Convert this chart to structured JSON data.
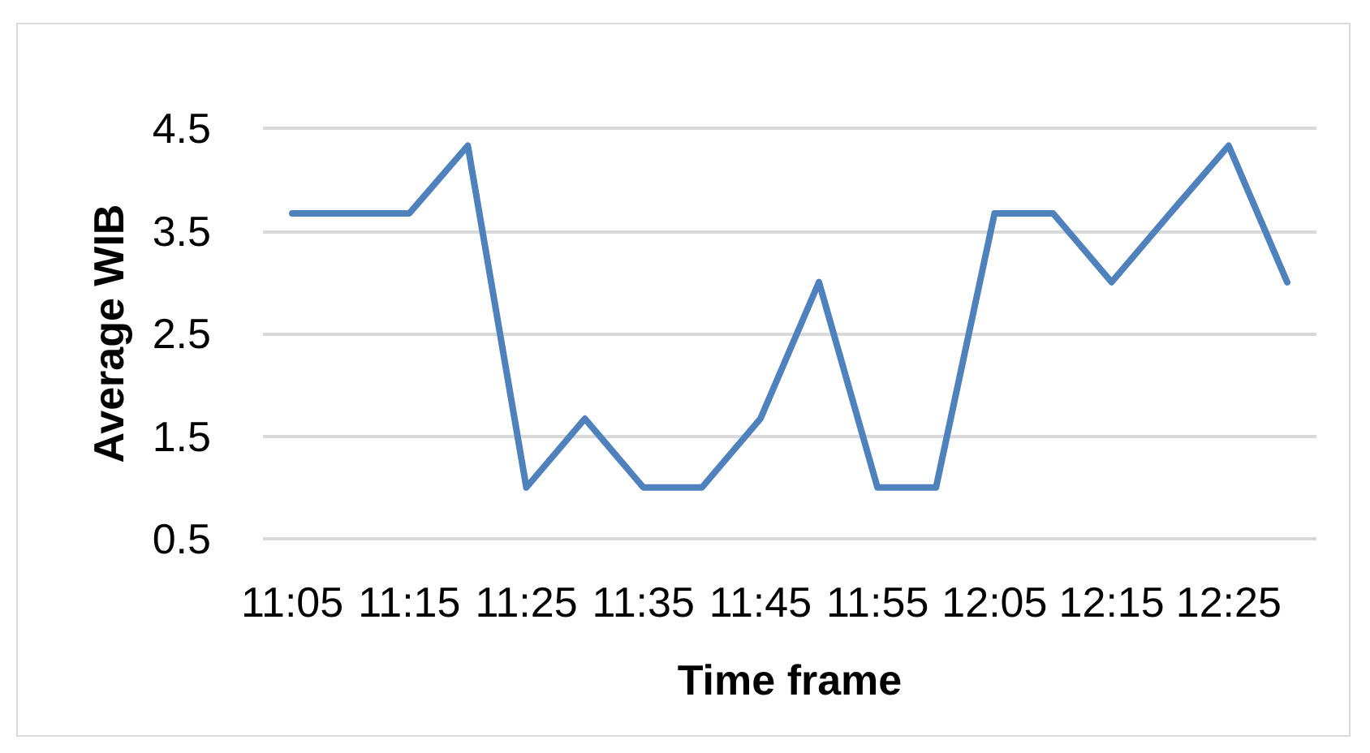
{
  "chart_data": {
    "type": "line",
    "xlabel": "Time frame",
    "ylabel": "Average WIB",
    "categories": [
      "11:05",
      null,
      "11:15",
      null,
      "11:25",
      null,
      "11:35",
      null,
      "11:45",
      null,
      "11:55",
      null,
      "12:05",
      null,
      "12:15",
      null,
      "12:25",
      null
    ],
    "values": [
      3.67,
      3.67,
      3.67,
      4.33,
      1,
      1.67,
      1,
      1,
      1.67,
      3,
      1,
      1,
      3.67,
      3.67,
      3,
      3.67,
      4.33,
      3
    ],
    "color": "#4f81bd",
    "ylim": [
      0.5,
      4.5
    ],
    "yticks": [
      0.5,
      1.5,
      2.5,
      3.5,
      4.5
    ],
    "grid": "y",
    "marker": "none",
    "line_style": "solid"
  }
}
